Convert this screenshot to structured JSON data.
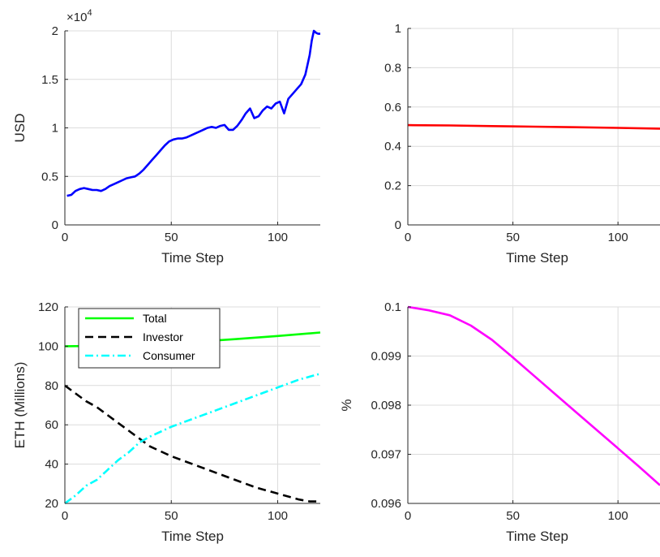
{
  "chart_data": [
    {
      "type": "line",
      "xlabel": "Time Step",
      "ylabel": "USD",
      "exponent_label": "×10",
      "exponent_power": "4",
      "xlim": [
        0,
        120
      ],
      "ylim": [
        0,
        20000
      ],
      "xticks": [
        0,
        50,
        100
      ],
      "yticks": [
        0,
        5000,
        10000,
        15000,
        20000
      ],
      "yticklabels": [
        "0",
        "0.5",
        "1",
        "1.5",
        "2"
      ],
      "grid": true,
      "series": [
        {
          "color": "#0000ff",
          "style": "solid",
          "x": [
            1,
            3,
            5,
            7,
            9,
            11,
            13,
            15,
            17,
            19,
            21,
            23,
            25,
            27,
            29,
            31,
            33,
            35,
            37,
            39,
            41,
            43,
            45,
            47,
            49,
            51,
            53,
            55,
            57,
            59,
            61,
            63,
            65,
            67,
            69,
            71,
            73,
            75,
            77,
            79,
            81,
            83,
            85,
            87,
            89,
            91,
            93,
            95,
            97,
            99,
            101,
            103,
            105,
            107,
            109,
            111,
            113,
            115,
            116,
            117,
            118,
            119,
            120
          ],
          "y": [
            3000,
            3100,
            3500,
            3700,
            3800,
            3700,
            3600,
            3600,
            3500,
            3700,
            4000,
            4200,
            4400,
            4600,
            4800,
            4900,
            5000,
            5300,
            5700,
            6200,
            6700,
            7200,
            7700,
            8200,
            8600,
            8800,
            8900,
            8900,
            9000,
            9200,
            9400,
            9600,
            9800,
            10000,
            10100,
            10000,
            10200,
            10300,
            9800,
            9800,
            10200,
            10800,
            11500,
            12000,
            11000,
            11200,
            11800,
            12200,
            12000,
            12500,
            12700,
            11500,
            13000,
            13500,
            14000,
            14500,
            15500,
            17500,
            19000,
            20000,
            19800,
            19700,
            19700
          ]
        }
      ]
    },
    {
      "type": "line",
      "xlabel": "Time Step",
      "ylabel": "",
      "xlim": [
        0,
        120
      ],
      "ylim": [
        0,
        1
      ],
      "xticks": [
        0,
        50,
        100
      ],
      "yticks": [
        0,
        0.2,
        0.4,
        0.6,
        0.8,
        1
      ],
      "yticklabels": [
        "0",
        "0.2",
        "0.4",
        "0.6",
        "0.8",
        "1"
      ],
      "grid": true,
      "series": [
        {
          "color": "#ff0000",
          "style": "solid",
          "x": [
            0,
            20,
            40,
            60,
            80,
            100,
            120
          ],
          "y": [
            0.508,
            0.506,
            0.503,
            0.5,
            0.497,
            0.494,
            0.49
          ]
        }
      ]
    },
    {
      "type": "line",
      "xlabel": "Time Step",
      "ylabel": "ETH (Millions)",
      "xlim": [
        0,
        120
      ],
      "ylim": [
        20,
        120
      ],
      "xticks": [
        0,
        50,
        100
      ],
      "yticks": [
        20,
        40,
        60,
        80,
        100,
        120
      ],
      "yticklabels": [
        "20",
        "40",
        "60",
        "80",
        "100",
        "120"
      ],
      "grid": true,
      "legend": "top-left",
      "series": [
        {
          "name": "Total",
          "color": "#00ff00",
          "style": "solid",
          "x": [
            0,
            20,
            40,
            60,
            80,
            100,
            120
          ],
          "y": [
            100,
            100.2,
            101,
            102.2,
            103.6,
            105.2,
            107
          ]
        },
        {
          "name": "Investor",
          "color": "#000000",
          "style": "dashed",
          "x": [
            0,
            5,
            10,
            15,
            20,
            25,
            30,
            35,
            40,
            50,
            60,
            70,
            80,
            90,
            100,
            110,
            115,
            120
          ],
          "y": [
            80,
            76,
            72,
            69,
            65,
            61,
            57,
            53,
            49,
            44,
            40,
            36,
            32,
            28,
            25,
            22,
            21,
            21
          ]
        },
        {
          "name": "Consumer",
          "color": "#00ffff",
          "style": "dashdot",
          "x": [
            0,
            5,
            10,
            15,
            20,
            25,
            30,
            35,
            40,
            50,
            60,
            70,
            80,
            90,
            100,
            110,
            120
          ],
          "y": [
            20,
            24,
            29,
            32,
            37,
            42,
            46,
            51,
            54,
            59,
            63,
            67,
            71,
            75,
            79,
            83,
            86
          ]
        }
      ]
    },
    {
      "type": "line",
      "xlabel": "Time Step",
      "ylabel": "%",
      "xlim": [
        0,
        120
      ],
      "ylim": [
        0.096,
        0.1
      ],
      "xticks": [
        0,
        50,
        100
      ],
      "yticks": [
        0.096,
        0.097,
        0.098,
        0.099,
        0.1
      ],
      "yticklabels": [
        "0.096",
        "0.097",
        "0.098",
        "0.099",
        "0.1"
      ],
      "grid": true,
      "series": [
        {
          "color": "#ff00ff",
          "style": "solid",
          "x": [
            0,
            10,
            20,
            30,
            40,
            50,
            60,
            70,
            80,
            90,
            100,
            110,
            120
          ],
          "y": [
            0.1,
            0.09993,
            0.09983,
            0.09962,
            0.09933,
            0.09897,
            0.0986,
            0.09823,
            0.09786,
            0.09749,
            0.09712,
            0.09675,
            0.09637
          ]
        }
      ]
    }
  ]
}
